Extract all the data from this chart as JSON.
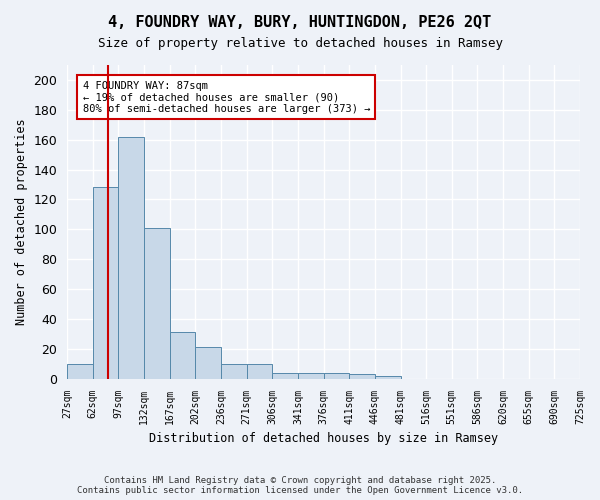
{
  "title": "4, FOUNDRY WAY, BURY, HUNTINGDON, PE26 2QT",
  "subtitle": "Size of property relative to detached houses in Ramsey",
  "xlabel": "Distribution of detached houses by size in Ramsey",
  "ylabel": "Number of detached properties",
  "bar_values": [
    10,
    128,
    162,
    101,
    31,
    21,
    10,
    10,
    4,
    4,
    4,
    3,
    2,
    0,
    0,
    0,
    0,
    0,
    0,
    0
  ],
  "bin_labels": [
    "27sqm",
    "62sqm",
    "97sqm",
    "132sqm",
    "167sqm",
    "202sqm",
    "236sqm",
    "271sqm",
    "306sqm",
    "341sqm",
    "376sqm",
    "411sqm",
    "446sqm",
    "481sqm",
    "516sqm",
    "551sqm",
    "586sqm",
    "620sqm",
    "655sqm",
    "690sqm",
    "725sqm"
  ],
  "bar_color": "#c8d8e8",
  "bar_edge_color": "#5588aa",
  "vline_x": 1.6,
  "vline_color": "#cc0000",
  "annotation_text": "4 FOUNDRY WAY: 87sqm\n← 19% of detached houses are smaller (90)\n80% of semi-detached houses are larger (373) →",
  "annotation_box_color": "#ffffff",
  "annotation_box_edge": "#cc0000",
  "ylim": [
    0,
    210
  ],
  "yticks": [
    0,
    20,
    40,
    60,
    80,
    100,
    120,
    140,
    160,
    180,
    200
  ],
  "background_color": "#eef2f8",
  "grid_color": "#ffffff",
  "footer_line1": "Contains HM Land Registry data © Crown copyright and database right 2025.",
  "footer_line2": "Contains public sector information licensed under the Open Government Licence v3.0."
}
